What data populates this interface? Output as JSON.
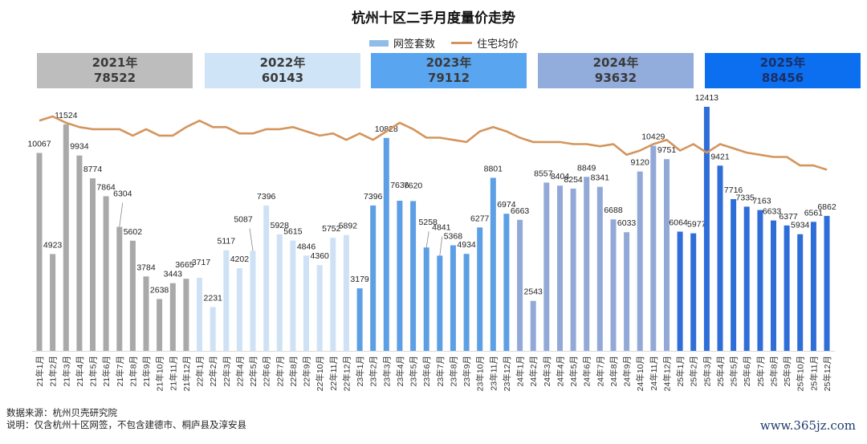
{
  "title": "杭州十区二手月度量价走势",
  "legend": {
    "bar_label": "网签套数",
    "line_label": "住宅均价"
  },
  "year_summary": [
    {
      "year": "2021年",
      "total": "78522",
      "color": "#bdbdbd"
    },
    {
      "year": "2022年",
      "total": "60143",
      "color": "#cfe4f7"
    },
    {
      "year": "2023年",
      "total": "79112",
      "color": "#5aa5ef"
    },
    {
      "year": "2024年",
      "total": "93632",
      "color": "#92acdb"
    },
    {
      "year": "2025年",
      "total": "88456",
      "color": "#0b6ff0"
    }
  ],
  "footnotes": {
    "source": "数据来源：杭州贝壳研究院",
    "note": "说明：仅含杭州十区网签，不包含建德市、桐庐县及淳安县"
  },
  "watermark": "www.365jz.com",
  "colors": {
    "bar_2021": "#a9a9a9",
    "bar_2022": "#cfe2f5",
    "bar_2023": "#5d9fe4",
    "bar_2024": "#92a9d8",
    "bar_2025": "#2f6ed8",
    "line": "#d4955c"
  },
  "chart_data": {
    "type": "bar",
    "title": "杭州十区二手月度量价走势",
    "xlabel": "",
    "ylabel": "",
    "ylim": [
      0,
      12500
    ],
    "grid": false,
    "legend_position": "top-center",
    "categories": [
      "21年1月",
      "21年2月",
      "21年3月",
      "21年4月",
      "21年5月",
      "21年6月",
      "21年7月",
      "21年8月",
      "21年9月",
      "21年10月",
      "21年11月",
      "21年12月",
      "22年1月",
      "22年2月",
      "22年3月",
      "22年4月",
      "22年5月",
      "22年6月",
      "22年7月",
      "22年8月",
      "22年9月",
      "22年10月",
      "22年11月",
      "22年12月",
      "23年1月",
      "23年2月",
      "23年3月",
      "23年4月",
      "23年5月",
      "23年6月",
      "23年7月",
      "23年8月",
      "23年9月",
      "23年10月",
      "23年11月",
      "23年12月",
      "24年1月",
      "24年2月",
      "24年3月",
      "24年4月",
      "24年5月",
      "24年6月",
      "24年7月",
      "24年8月",
      "24年9月",
      "24年10月",
      "24年11月",
      "24年12月",
      "25年1月",
      "25年2月",
      "25年3月",
      "25年4月",
      "25年5月",
      "25年6月",
      "25年7月",
      "25年8月",
      "25年9月",
      "25年10月",
      "25年11月",
      "25年12月"
    ],
    "series": [
      {
        "name": "网签套数",
        "type": "bar",
        "values": [
          10067,
          4923,
          11524,
          9934,
          8774,
          7864,
          6304,
          5602,
          3784,
          2638,
          3443,
          3665,
          3717,
          2231,
          5117,
          4202,
          5087,
          7396,
          5928,
          5615,
          4846,
          4360,
          5752,
          5892,
          3179,
          7396,
          10828,
          7636,
          7620,
          5258,
          4841,
          5368,
          4934,
          6277,
          8801,
          6974,
          6663,
          2543,
          8557,
          8404,
          8254,
          8849,
          8341,
          6688,
          6033,
          9120,
          10429,
          9751,
          6064,
          5977,
          12413,
          9421,
          7716,
          7335,
          7163,
          6633,
          6377,
          5934,
          6561,
          6862
        ]
      },
      {
        "name": "住宅均价",
        "type": "line",
        "unit": "relative index (unlabeled)",
        "values": [
          100,
          102,
          99,
          97,
          96,
          96,
          96,
          93,
          96,
          93,
          93,
          97,
          100,
          97,
          97,
          94,
          94,
          96,
          96,
          97,
          95,
          93,
          94,
          91,
          94,
          91,
          95,
          99,
          96,
          92,
          92,
          91,
          90,
          95,
          97,
          95,
          92,
          90,
          90,
          90,
          89,
          89,
          88,
          89,
          84,
          86,
          89,
          91,
          86,
          89,
          85,
          89,
          87,
          85,
          84,
          83,
          83,
          79,
          79,
          77
        ]
      }
    ]
  }
}
